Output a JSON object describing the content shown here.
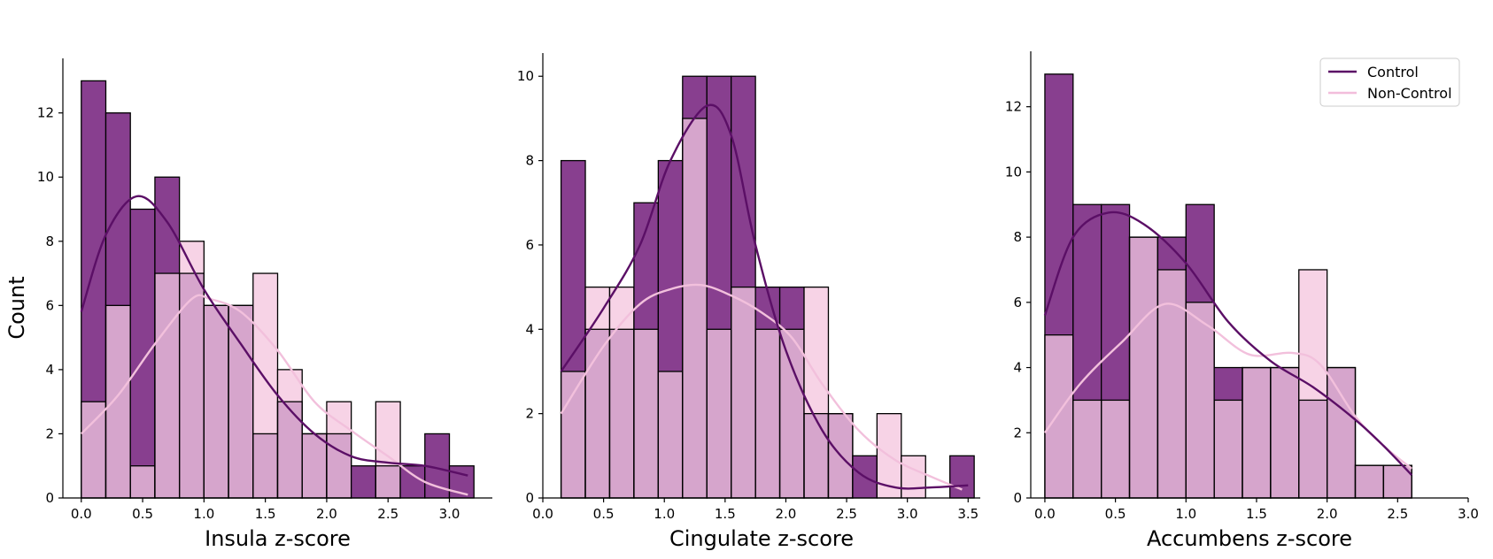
{
  "figure": {
    "ylabel": "Count",
    "legend": {
      "placement": "top-right of third panel",
      "entries": [
        {
          "label": "Control",
          "color": "#5b0f66"
        },
        {
          "label": "Non-Control",
          "color": "#f2bddb"
        }
      ]
    },
    "colors": {
      "control_bar": "#883f8f",
      "noncontrol_bar": "#f7d3e6",
      "overlap_bar": "#d6a5cc",
      "control_kde": "#5b0f66",
      "noncontrol_kde": "#f2c0dc"
    }
  },
  "chart_data": [
    {
      "type": "bar",
      "subtype": "overlaid histogram with KDE",
      "xlabel": "Insula z-score",
      "ylabel": "Count",
      "xlim": [
        -0.15,
        3.35
      ],
      "ylim": [
        0,
        13.7
      ],
      "xticks": [
        "0.0",
        "0.5",
        "1.0",
        "1.5",
        "2.0",
        "2.5",
        "3.0"
      ],
      "yticks": [
        "0",
        "2",
        "4",
        "6",
        "8",
        "10",
        "12"
      ],
      "bin_edges": [
        0.0,
        0.2,
        0.4,
        0.6,
        0.8,
        1.0,
        1.2,
        1.4,
        1.6,
        1.8,
        2.0,
        2.2,
        2.4,
        2.6,
        2.8,
        3.0,
        3.2
      ],
      "series": [
        {
          "name": "Control",
          "values": [
            13,
            12,
            9,
            10,
            7,
            6,
            6,
            2,
            3,
            2,
            2,
            1,
            1,
            1,
            2,
            1
          ]
        },
        {
          "name": "Non-Control",
          "values": [
            3,
            6,
            1,
            7,
            8,
            6,
            6,
            7,
            4,
            2,
            3,
            0,
            3,
            0,
            0,
            0
          ]
        }
      ],
      "kde": {
        "Control": [
          [
            0,
            5.8
          ],
          [
            0.2,
            8.2
          ],
          [
            0.45,
            9.4
          ],
          [
            0.7,
            8.6
          ],
          [
            1.0,
            6.5
          ],
          [
            1.3,
            4.8
          ],
          [
            1.6,
            3.2
          ],
          [
            1.9,
            2.0
          ],
          [
            2.2,
            1.3
          ],
          [
            2.5,
            1.1
          ],
          [
            2.8,
            1.0
          ],
          [
            3.15,
            0.7
          ]
        ],
        "Non-Control": [
          [
            0,
            2.0
          ],
          [
            0.3,
            3.2
          ],
          [
            0.6,
            4.8
          ],
          [
            0.9,
            6.2
          ],
          [
            1.05,
            6.2
          ],
          [
            1.3,
            5.8
          ],
          [
            1.6,
            4.6
          ],
          [
            1.9,
            3.0
          ],
          [
            2.2,
            2.1
          ],
          [
            2.5,
            1.3
          ],
          [
            2.8,
            0.5
          ],
          [
            3.15,
            0.1
          ]
        ]
      }
    },
    {
      "type": "bar",
      "subtype": "overlaid histogram with KDE",
      "xlabel": "Cingulate z-score",
      "ylabel": "",
      "xlim": [
        0.0,
        3.6
      ],
      "ylim": [
        0,
        10.55
      ],
      "xticks": [
        "0.0",
        "0.5",
        "1.0",
        "1.5",
        "2.0",
        "2.5",
        "3.0",
        "3.5"
      ],
      "yticks": [
        "0",
        "2",
        "4",
        "6",
        "8",
        "10"
      ],
      "bin_edges": [
        0.15,
        0.35,
        0.55,
        0.75,
        0.95,
        1.15,
        1.35,
        1.55,
        1.75,
        1.95,
        2.15,
        2.35,
        2.55,
        2.75,
        2.95,
        3.15,
        3.35,
        3.55
      ],
      "series": [
        {
          "name": "Control",
          "values": [
            8,
            4,
            4,
            7,
            8,
            10,
            10,
            10,
            5,
            5,
            2,
            2,
            1,
            0,
            0,
            0,
            1
          ]
        },
        {
          "name": "Non-Control",
          "values": [
            3,
            5,
            5,
            4,
            3,
            9,
            4,
            5,
            4,
            4,
            5,
            2,
            0,
            2,
            1,
            0,
            0
          ]
        }
      ],
      "kde": {
        "Control": [
          [
            0.15,
            3.0
          ],
          [
            0.5,
            4.5
          ],
          [
            0.8,
            6.0
          ],
          [
            1.05,
            8.0
          ],
          [
            1.35,
            9.3
          ],
          [
            1.55,
            8.6
          ],
          [
            1.75,
            6.0
          ],
          [
            2.0,
            3.5
          ],
          [
            2.3,
            1.6
          ],
          [
            2.6,
            0.6
          ],
          [
            2.9,
            0.25
          ],
          [
            3.2,
            0.25
          ],
          [
            3.5,
            0.3
          ]
        ],
        "Non-Control": [
          [
            0.15,
            2.0
          ],
          [
            0.5,
            3.6
          ],
          [
            0.8,
            4.6
          ],
          [
            1.05,
            4.95
          ],
          [
            1.3,
            5.05
          ],
          [
            1.55,
            4.8
          ],
          [
            1.8,
            4.4
          ],
          [
            2.05,
            3.8
          ],
          [
            2.3,
            2.7
          ],
          [
            2.6,
            1.6
          ],
          [
            2.9,
            0.9
          ],
          [
            3.2,
            0.5
          ],
          [
            3.45,
            0.2
          ]
        ]
      }
    },
    {
      "type": "bar",
      "subtype": "overlaid histogram with KDE",
      "xlabel": "Accumbens z-score",
      "ylabel": "",
      "xlim": [
        -0.1,
        3.0
      ],
      "ylim": [
        0,
        13.7
      ],
      "xticks": [
        "0.0",
        "0.5",
        "1.0",
        "1.5",
        "2.0",
        "2.5",
        "3.0"
      ],
      "yticks": [
        "0",
        "2",
        "4",
        "6",
        "8",
        "10",
        "12"
      ],
      "bin_edges": [
        0.0,
        0.2,
        0.4,
        0.6,
        0.8,
        1.0,
        1.2,
        1.4,
        1.6,
        1.8,
        2.0,
        2.2,
        2.4,
        2.6
      ],
      "series": [
        {
          "name": "Control",
          "values": [
            13,
            9,
            9,
            8,
            8,
            9,
            4,
            4,
            4,
            3,
            4,
            1,
            1
          ]
        },
        {
          "name": "Non-Control",
          "values": [
            5,
            3,
            3,
            8,
            7,
            6,
            3,
            4,
            4,
            7,
            4,
            1,
            1
          ]
        }
      ],
      "kde": {
        "Control": [
          [
            0,
            5.6
          ],
          [
            0.2,
            8.0
          ],
          [
            0.45,
            8.75
          ],
          [
            0.7,
            8.4
          ],
          [
            1.0,
            7.2
          ],
          [
            1.3,
            5.4
          ],
          [
            1.6,
            4.2
          ],
          [
            1.9,
            3.4
          ],
          [
            2.2,
            2.4
          ],
          [
            2.4,
            1.6
          ],
          [
            2.6,
            0.7
          ]
        ],
        "Non-Control": [
          [
            0,
            2.0
          ],
          [
            0.25,
            3.5
          ],
          [
            0.55,
            4.8
          ],
          [
            0.85,
            5.95
          ],
          [
            1.15,
            5.3
          ],
          [
            1.45,
            4.4
          ],
          [
            1.75,
            4.45
          ],
          [
            1.95,
            4.1
          ],
          [
            2.2,
            2.5
          ],
          [
            2.4,
            1.6
          ],
          [
            2.6,
            0.9
          ]
        ]
      }
    }
  ]
}
